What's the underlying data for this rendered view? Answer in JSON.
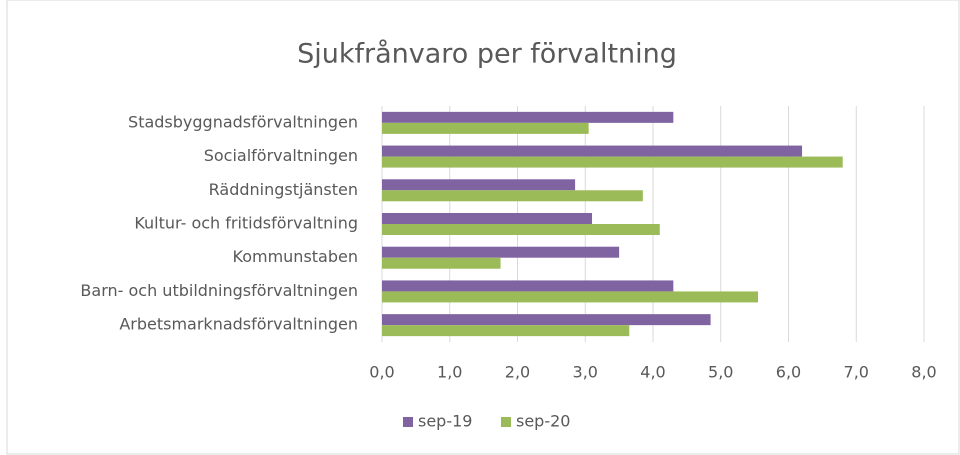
{
  "chart_data": {
    "type": "bar",
    "orientation": "horizontal",
    "title": "Sjukfrånvaro per förvaltning",
    "categories": [
      "Stadsbyggnadsförvaltningen",
      "Socialförvaltningen",
      "Räddningstjänsten",
      "Kultur- och fritidsförvaltning",
      "Kommunstaben",
      "Barn- och utbildningsförvaltningen",
      "Arbetsmarknadsförvaltningen"
    ],
    "series": [
      {
        "name": "sep-19",
        "color": "#8064a2",
        "values": [
          4.3,
          6.2,
          2.85,
          3.1,
          3.5,
          4.3,
          4.85
        ]
      },
      {
        "name": "sep-20",
        "color": "#9bbb59",
        "values": [
          3.05,
          6.8,
          3.85,
          4.1,
          1.75,
          5.55,
          3.65
        ]
      }
    ],
    "xlim": [
      0,
      8
    ],
    "xticks": [
      {
        "value": 0,
        "label": "0,0"
      },
      {
        "value": 1,
        "label": "1,0"
      },
      {
        "value": 2,
        "label": "2,0"
      },
      {
        "value": 3,
        "label": "3,0"
      },
      {
        "value": 4,
        "label": "4,0"
      },
      {
        "value": 5,
        "label": "5,0"
      },
      {
        "value": 6,
        "label": "6,0"
      },
      {
        "value": 7,
        "label": "7,0"
      },
      {
        "value": 8,
        "label": "8,0"
      }
    ],
    "grid": true,
    "legend": "bottom"
  }
}
